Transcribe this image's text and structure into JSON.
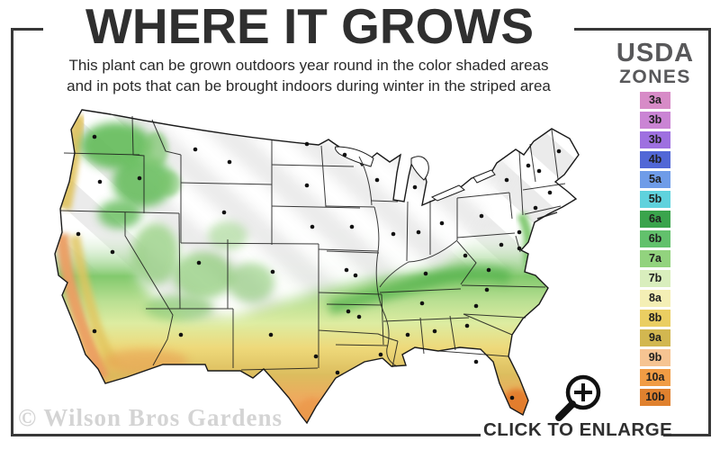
{
  "title": "WHERE IT GROWS",
  "subtitle": {
    "line1": "This plant can be grown outdoors year round in the color shaded areas",
    "line2": "and in pots that can be brought indoors during winter in the striped area"
  },
  "usda_zones_panel": {
    "heading_line1": "USDA",
    "heading_line2": "ZONES",
    "zones": [
      {
        "label": "3a",
        "color": "#d78bc7"
      },
      {
        "label": "3b",
        "color": "#ca84d4"
      },
      {
        "label": "3b",
        "color": "#9e70e0"
      },
      {
        "label": "4b",
        "color": "#5167d6"
      },
      {
        "label": "5a",
        "color": "#6f9ce8"
      },
      {
        "label": "5b",
        "color": "#5fd2dd"
      },
      {
        "label": "6a",
        "color": "#3aa44c"
      },
      {
        "label": "6b",
        "color": "#62c16c"
      },
      {
        "label": "7a",
        "color": "#92d37e"
      },
      {
        "label": "7b",
        "color": "#d9eebd"
      },
      {
        "label": "8a",
        "color": "#f4efb5"
      },
      {
        "label": "8b",
        "color": "#eace62"
      },
      {
        "label": "9a",
        "color": "#d2b750"
      },
      {
        "label": "9b",
        "color": "#f6c492"
      },
      {
        "label": "10a",
        "color": "#f19c44"
      },
      {
        "label": "10b",
        "color": "#e0812e"
      }
    ]
  },
  "watermark": "© Wilson Bros Gardens",
  "enlarge": {
    "label": "CLICK TO ENLARGE",
    "icon": "magnifier-plus-icon"
  },
  "colors": {
    "frame": "#383838",
    "title_text": "#2f2f2f",
    "zones_heading_text": "#58585a",
    "watermark_text": "#d4d4d4",
    "striped_area_stripe": "#ebebeb"
  }
}
